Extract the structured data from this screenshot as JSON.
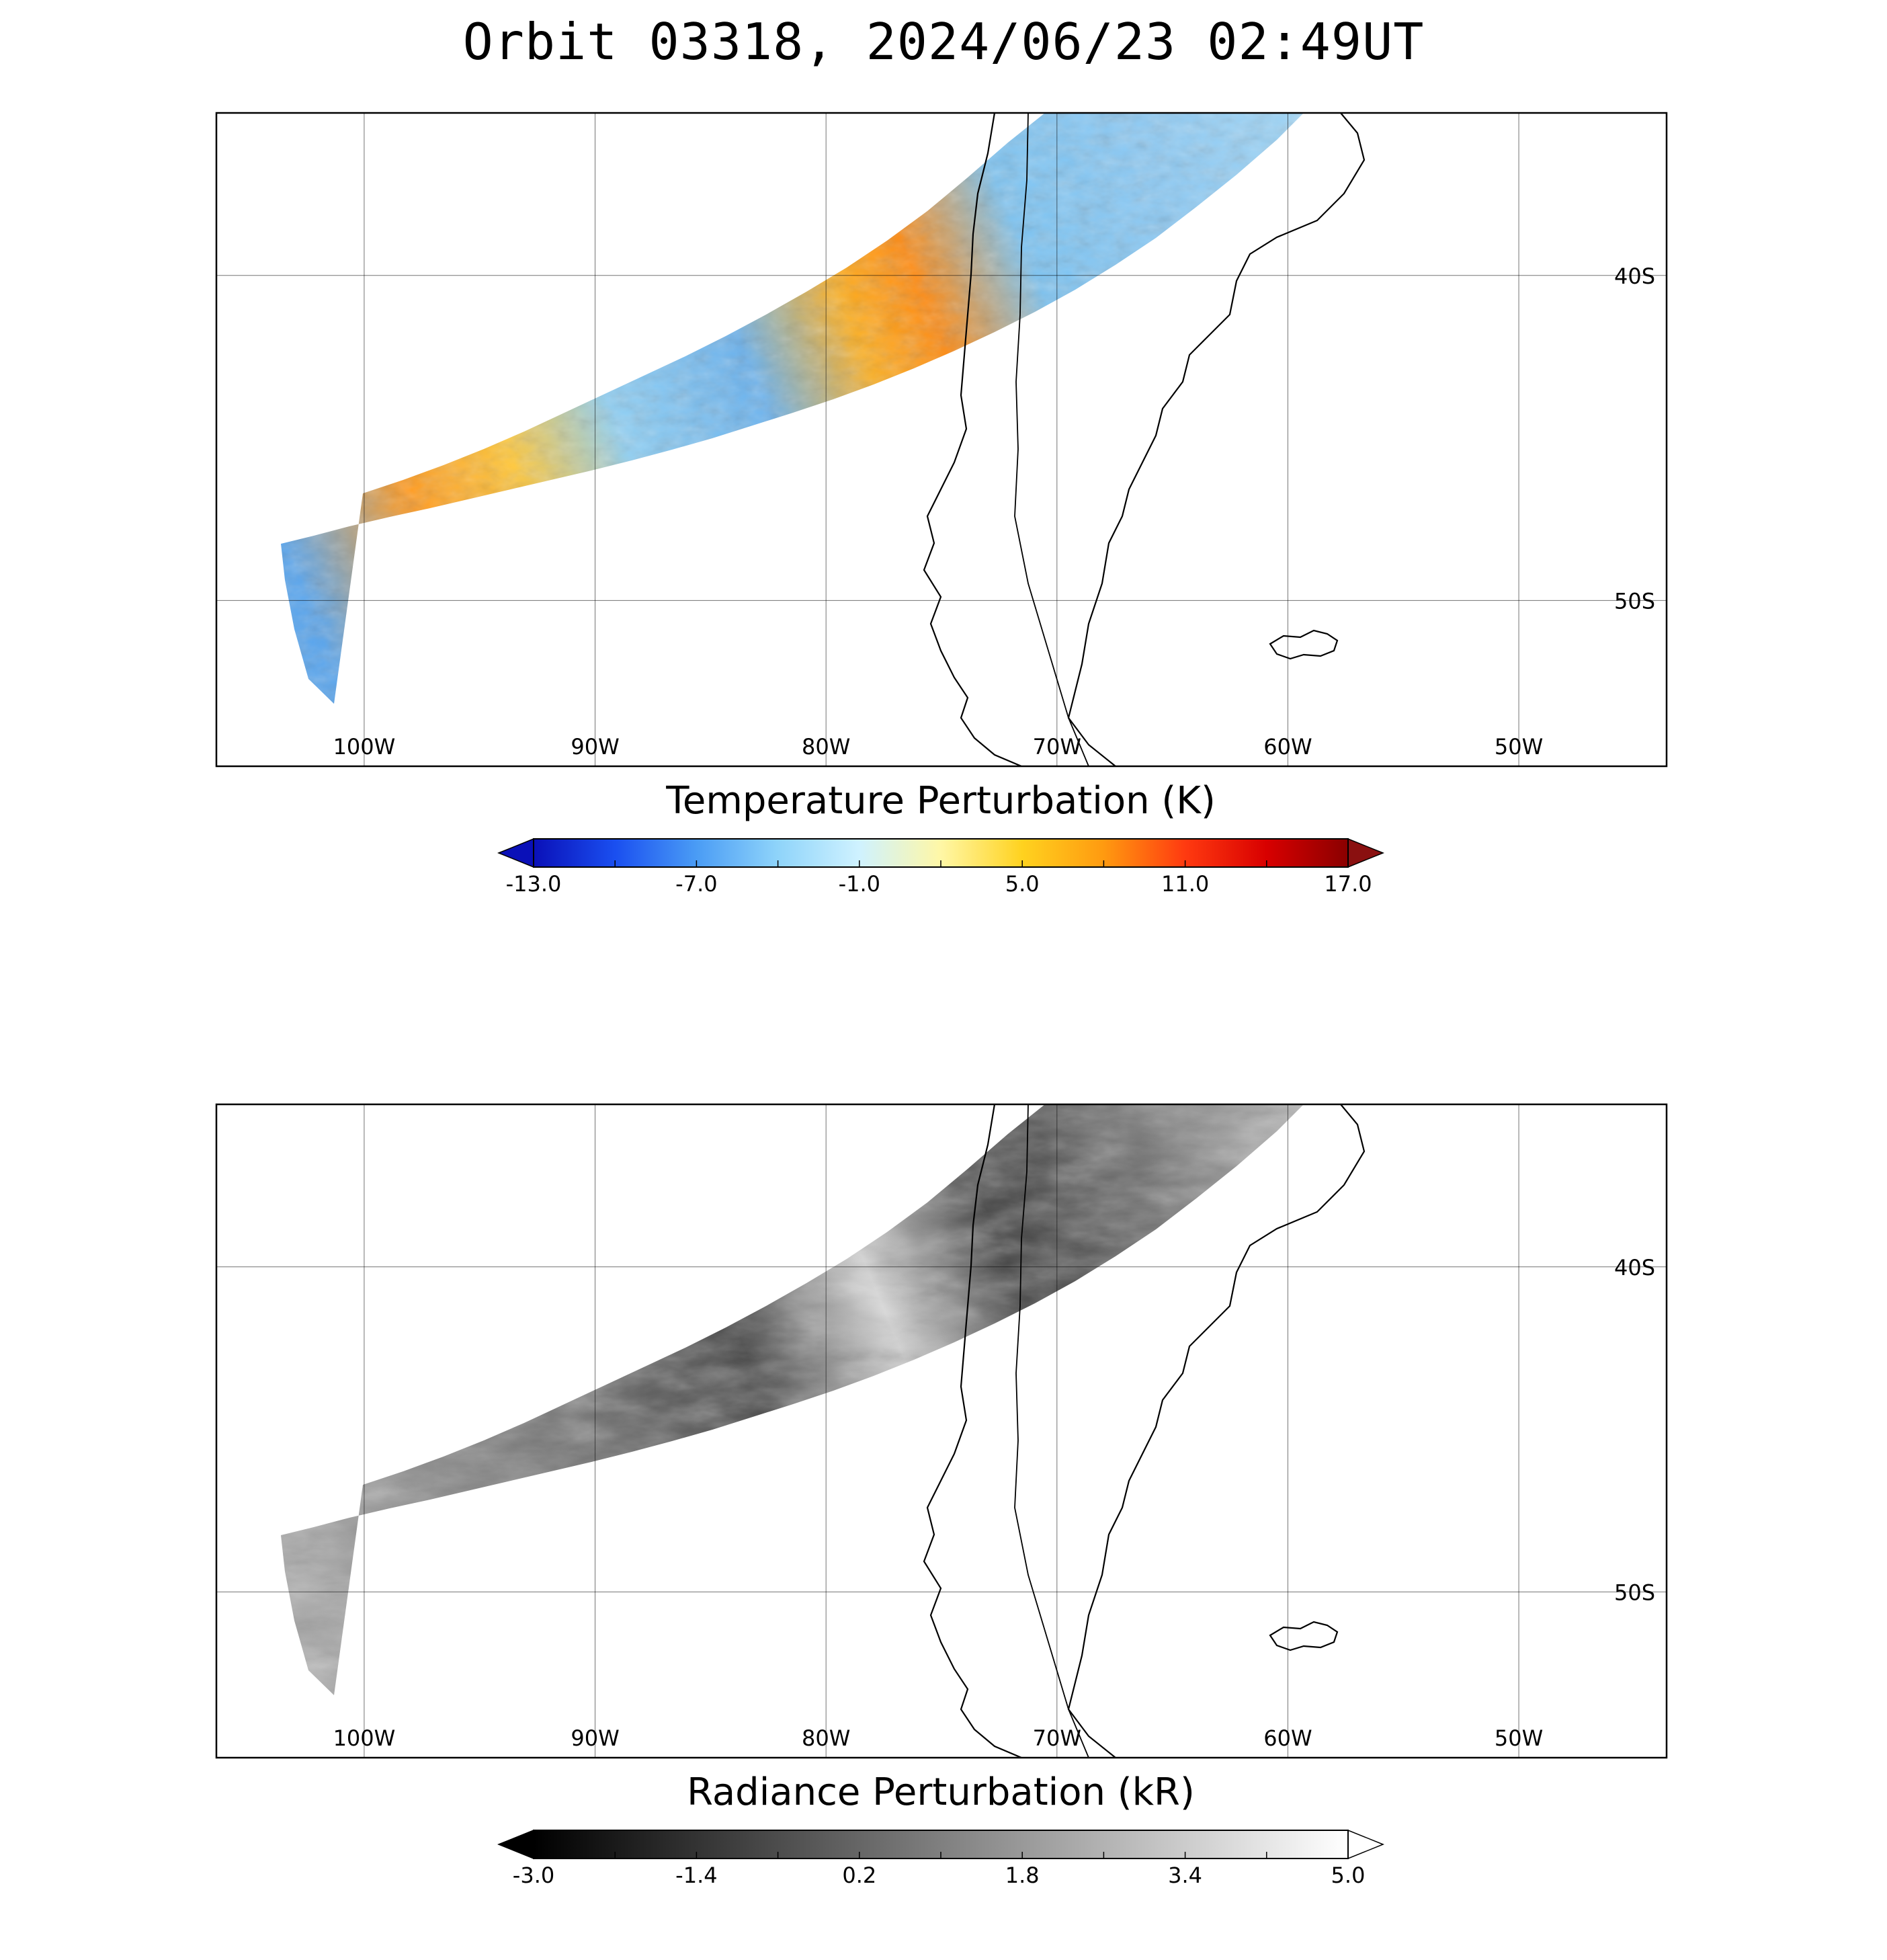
{
  "title": "Orbit 03318, 2024/06/23 02:49UT",
  "panels": [
    {
      "id": "temperature",
      "colorbar": {
        "label": "Temperature Perturbation (K)",
        "ticks": [
          "-13.0",
          "-7.0",
          "-1.0",
          "5.0",
          "11.0",
          "17.0"
        ],
        "min": -13.0,
        "max": 17.0,
        "colormap": [
          "#0a10b8",
          "#1a4ff0",
          "#4a9cf5",
          "#8fd4fa",
          "#cff2ff",
          "#fff7a6",
          "#ffd21f",
          "#ff9a10",
          "#ff3a10",
          "#d80000",
          "#8a0000"
        ],
        "under_color": "#0a10b8",
        "over_color": "#8a1010"
      },
      "lon_labels": [
        "100W",
        "90W",
        "80W",
        "70W",
        "60W",
        "50W"
      ],
      "lat_labels": [
        "40S",
        "50S"
      ]
    },
    {
      "id": "radiance",
      "colorbar": {
        "label": "Radiance Perturbation (kR)",
        "ticks": [
          "-3.0",
          "-1.4",
          "0.2",
          "1.8",
          "3.4",
          "5.0"
        ],
        "min": -3.0,
        "max": 5.0,
        "colormap": [
          "#000000",
          "#ffffff"
        ],
        "under_color": "#000000",
        "over_color": "#ffffff"
      },
      "lon_labels": [
        "100W",
        "90W",
        "80W",
        "70W",
        "60W",
        "50W"
      ],
      "lat_labels": [
        "40S",
        "50S"
      ]
    }
  ],
  "map": {
    "projection": "cylindrical",
    "lon_range": [
      -106.4,
      -43.6
    ],
    "lat_range": [
      -55.1,
      -35.0
    ],
    "gridlines": true
  }
}
